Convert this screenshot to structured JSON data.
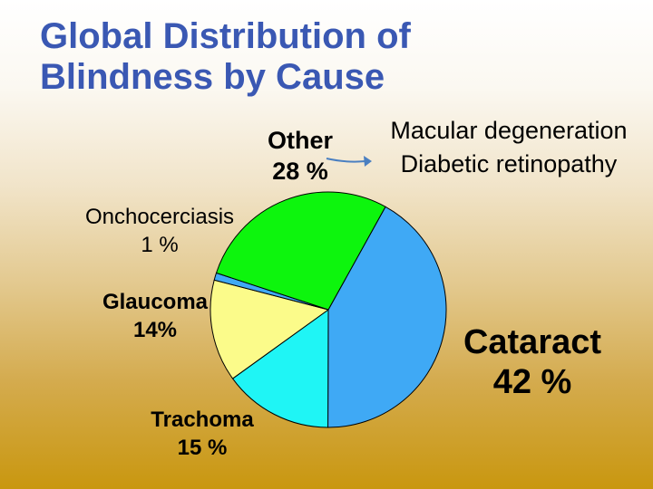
{
  "title_lines": [
    "Global Distribution of",
    "Blindness by Cause"
  ],
  "chart_data": {
    "type": "pie",
    "title": "Global Distribution of Blindness by Cause",
    "slices": [
      {
        "label": "Cataract",
        "value_label": "42 %",
        "value": 42,
        "color": "#3fa9f5"
      },
      {
        "label": "Trachoma",
        "value_label": "15 %",
        "value": 15,
        "color": "#1ff5f5"
      },
      {
        "label": "Glaucoma",
        "value_label": "14%",
        "value": 14,
        "color": "#fbfb8a"
      },
      {
        "label": "Onchocerciasis",
        "value_label": "1 %",
        "value": 1,
        "color": "#3fa9f5"
      },
      {
        "label": "Other",
        "value_label": "28 %",
        "value": 28,
        "color": "#0df50d"
      }
    ],
    "annotation": [
      "Macular degeneration",
      "Diabetic retinopathy"
    ]
  }
}
